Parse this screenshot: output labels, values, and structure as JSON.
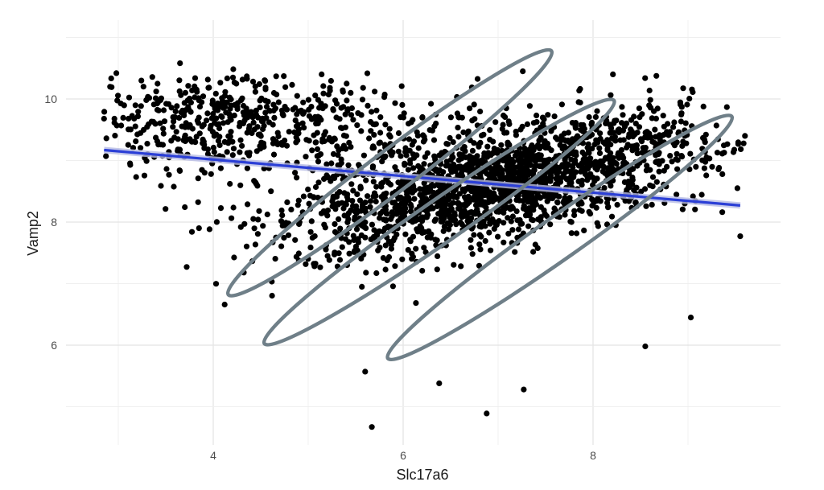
{
  "chart_data": {
    "type": "scatter",
    "xlabel": "Slc17a6",
    "ylabel": "Vamp2",
    "xlim": [
      2.8,
      9.8
    ],
    "ylim": [
      4.6,
      11.0
    ],
    "x_ticks": [
      4,
      6,
      8
    ],
    "y_ticks": [
      6,
      8,
      10
    ],
    "grid": true,
    "legend": "none",
    "point_count_approx": 2500,
    "point_cloud": {
      "center": [
        7.0,
        8.65
      ],
      "x_range_observed": [
        2.85,
        9.6
      ],
      "y_range_observed": [
        4.65,
        10.55
      ],
      "correlation_approx": 0.4
    },
    "sample_points": [
      {
        "x": 2.85,
        "y": 9.68
      },
      {
        "x": 2.87,
        "y": 9.07
      },
      {
        "x": 2.98,
        "y": 10.42
      },
      {
        "x": 3.65,
        "y": 10.58
      },
      {
        "x": 3.85,
        "y": 7.9
      },
      {
        "x": 4.12,
        "y": 6.66
      },
      {
        "x": 5.67,
        "y": 4.67
      },
      {
        "x": 5.6,
        "y": 5.57
      },
      {
        "x": 6.38,
        "y": 5.38
      },
      {
        "x": 6.88,
        "y": 4.89
      },
      {
        "x": 7.27,
        "y": 5.28
      },
      {
        "x": 8.55,
        "y": 5.98
      },
      {
        "x": 9.03,
        "y": 6.45
      },
      {
        "x": 9.55,
        "y": 7.77
      },
      {
        "x": 9.6,
        "y": 9.4
      },
      {
        "x": 9.52,
        "y": 8.55
      },
      {
        "x": 8.92,
        "y": 9.91
      },
      {
        "x": 7.26,
        "y": 10.45
      }
    ],
    "trend_line": {
      "method": "linear fit with confidence band",
      "color": "#2b3fd6",
      "x": [
        2.85,
        9.55
      ],
      "y": [
        9.17,
        8.27
      ]
    },
    "ellipses": [
      {
        "center": [
          5.86,
          8.8
        ],
        "x_extent": [
          4.15,
          7.57
        ],
        "y_extent": [
          6.8,
          10.78
        ],
        "color": "#6f7f88"
      },
      {
        "center": [
          6.38,
          8.0
        ],
        "x_extent": [
          4.53,
          8.23
        ],
        "y_extent": [
          6.0,
          9.97
        ],
        "color": "#6f7f88"
      },
      {
        "center": [
          7.65,
          7.75
        ],
        "x_extent": [
          5.83,
          9.47
        ],
        "y_extent": [
          5.78,
          9.73
        ],
        "color": "#6f7f88"
      }
    ]
  }
}
